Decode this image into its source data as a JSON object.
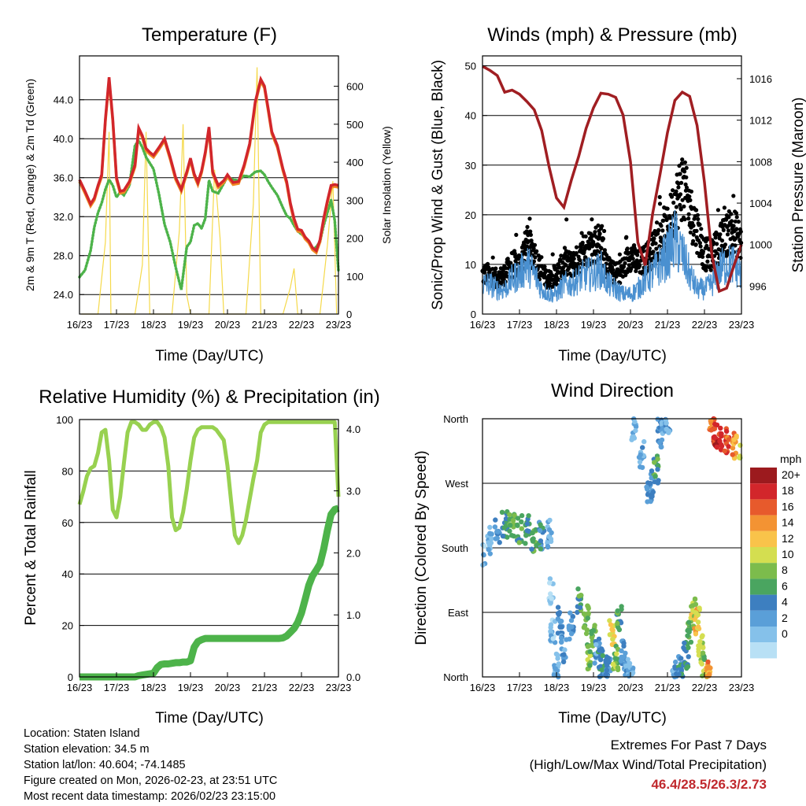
{
  "panels": {
    "temperature": {
      "title": "Temperature (F)",
      "ylabel_left": "2m & 9m T (Red, Orange) & 2m Td (Green)",
      "ylabel_right": "Solar Insolation (Yellow)",
      "xlabel": "Time (Day/UTC)",
      "left_ticks": [
        "24.0",
        "28.0",
        "32.0",
        "36.0",
        "40.0",
        "44.0"
      ],
      "right_ticks": [
        "0",
        "100",
        "200",
        "300",
        "400",
        "500",
        "600"
      ]
    },
    "winds": {
      "title": "Winds (mph) & Pressure (mb)",
      "ylabel_left": "Sonic/Prop Wind & Gust (Blue, Black)",
      "ylabel_right": "Station Pressure (Maroon)",
      "xlabel": "Time (Day/UTC)",
      "left_ticks": [
        "0",
        "10",
        "20",
        "30",
        "40",
        "50"
      ],
      "right_ticks": [
        "996",
        "1000",
        "1004",
        "1008",
        "1012",
        "1016"
      ]
    },
    "humidity": {
      "title": "Relative Humidity (%) & Precipitation (in)",
      "ylabel_left": "Percent & Total Rainfall",
      "xlabel": "Time (Day/UTC)",
      "left_ticks": [
        "0",
        "20",
        "40",
        "60",
        "80",
        "100"
      ],
      "right_ticks": [
        "0.0",
        "1.0",
        "2.0",
        "3.0",
        "4.0"
      ]
    },
    "direction": {
      "title": "Wind Direction",
      "ylabel_left": "Direction (Colored By Speed)",
      "xlabel": "Time (Day/UTC)",
      "dir_ticks": [
        "North",
        "East",
        "South",
        "West",
        "North"
      ],
      "legend_title": "mph",
      "legend_labels": [
        "20+",
        "18",
        "16",
        "14",
        "12",
        "10",
        "8",
        "6",
        "4",
        "2",
        "0"
      ]
    }
  },
  "x_ticks": [
    "16/23",
    "17/23",
    "18/23",
    "19/23",
    "20/23",
    "21/23",
    "22/23",
    "23/23"
  ],
  "footer": {
    "location": "Location: Staten Island",
    "elevation": "Station elevation: 34.5 m",
    "latlon": "Station lat/lon: 40.604; -74.1485",
    "created": "Figure created on Mon, 2026-02-23, at 23:51 UTC",
    "recent": "Most recent data timestamp: 2026/02/23 23:15:00",
    "extremes_title": "Extremes For Past 7 Days",
    "extremes_subtitle": "(High/Low/Max Wind/Total Precipitation)",
    "extremes_values": "46.4/28.5/26.3/2.73"
  },
  "colors": {
    "temp2m": "#d2262b",
    "temp9m": "#f08a24",
    "dewpoint": "#4db34a",
    "solar": "#f5d94a",
    "wind": "#4a90d0",
    "gust": "#000000",
    "pressure": "#a01e22",
    "rh": "#98d150",
    "precip": "#4db34a",
    "extremes": "#c0282d",
    "speed_scale": [
      "#b8e0f5",
      "#85c1ea",
      "#5a9fd8",
      "#3d7fc0",
      "#4aa560",
      "#7cbc4c",
      "#d4de50",
      "#f9c34a",
      "#f39333",
      "#e75a2c",
      "#d2262b",
      "#9c1a1e"
    ]
  },
  "chart_data": [
    {
      "type": "line",
      "title": "Temperature (F)",
      "xlabel": "Time (Day/UTC)",
      "ylabel": "2m & 9m T (Red, Orange) & 2m Td (Green)",
      "y2label": "Solar Insolation (Yellow)",
      "x": [
        0,
        0.15,
        0.3,
        0.4,
        0.5,
        0.6,
        0.7,
        0.8,
        0.9,
        1.0,
        1.1,
        1.2,
        1.35,
        1.5,
        1.6,
        1.7,
        1.8,
        1.9,
        2.0,
        2.15,
        2.3,
        2.45,
        2.6,
        2.75,
        2.9,
        3.0,
        3.1,
        3.2,
        3.3,
        3.4,
        3.5,
        3.6,
        3.75,
        3.9,
        4.0,
        4.15,
        4.3,
        4.45,
        4.6,
        4.75,
        4.9,
        5.0,
        5.1,
        5.2,
        5.35,
        5.5,
        5.6,
        5.7,
        5.8,
        5.9,
        6.0,
        6.1,
        6.2,
        6.3,
        6.4,
        6.5,
        6.6,
        6.7,
        6.8,
        6.9,
        7.0
      ],
      "ylim": [
        22,
        48.5
      ],
      "y2lim": [
        0,
        680
      ],
      "series": [
        {
          "name": "2m T",
          "values": [
            35.8,
            34.6,
            33.3,
            33.9,
            35.2,
            36.3,
            42.0,
            46.3,
            42.0,
            36.0,
            34.6,
            34.7,
            35.6,
            37.3,
            41.1,
            40.3,
            39.0,
            38.6,
            38.3,
            39.1,
            40.0,
            38.1,
            36.0,
            34.8,
            36.6,
            38.0,
            36.4,
            35.5,
            36.7,
            38.6,
            41.2,
            36.6,
            35.2,
            35.7,
            36.3,
            35.5,
            35.6,
            37.3,
            39.5,
            43.8,
            46.1,
            45.4,
            43.1,
            40.7,
            39.3,
            36.9,
            35.6,
            33.4,
            31.8,
            30.7,
            30.6,
            29.9,
            29.5,
            28.8,
            28.5,
            29.6,
            31.8,
            33.6,
            35.2,
            35.3,
            35.2
          ]
        },
        {
          "name": "9m T",
          "values": [
            35.6,
            34.4,
            33.1,
            33.7,
            35.0,
            36.1,
            41.8,
            46.0,
            41.8,
            35.8,
            34.4,
            34.5,
            35.4,
            37.1,
            40.9,
            40.1,
            38.8,
            38.4,
            38.1,
            38.9,
            39.8,
            37.9,
            35.8,
            34.6,
            36.4,
            37.8,
            36.2,
            35.3,
            36.5,
            38.4,
            41.0,
            36.4,
            35.0,
            35.5,
            36.1,
            35.3,
            35.4,
            37.1,
            39.3,
            43.6,
            45.9,
            45.2,
            42.9,
            40.5,
            39.1,
            36.7,
            35.4,
            33.2,
            31.6,
            30.5,
            30.4,
            29.7,
            29.3,
            28.6,
            28.3,
            29.4,
            31.6,
            33.4,
            35.0,
            35.1,
            35.0
          ]
        },
        {
          "name": "2m Td",
          "values": [
            25.8,
            26.5,
            28.5,
            30.9,
            32.4,
            33.4,
            34.8,
            35.8,
            35.2,
            34.0,
            34.5,
            34.2,
            35.2,
            39.3,
            39.8,
            39.1,
            38.1,
            37.5,
            36.9,
            34.3,
            31.2,
            29.4,
            26.8,
            24.5,
            28.9,
            29.4,
            31.1,
            31.3,
            30.8,
            31.8,
            35.7,
            34.6,
            34.4,
            35.4,
            36.1,
            35.8,
            35.7,
            36.2,
            36.1,
            36.6,
            36.7,
            36.3,
            35.6,
            35.0,
            34.2,
            32.9,
            32.1,
            31.8,
            31.1,
            30.5,
            30.2,
            29.9,
            29.4,
            28.6,
            28.9,
            29.4,
            31.1,
            32.4,
            33.7,
            31.6,
            26.4
          ]
        },
        {
          "name": "Solar Insolation",
          "axis": "y2",
          "x": [
            0.05,
            0.5,
            0.7,
            0.8,
            0.85,
            1.1,
            1.5,
            1.7,
            1.8,
            1.9,
            2.2,
            2.5,
            2.7,
            2.8,
            2.9,
            3.0,
            3.2,
            3.5,
            3.65,
            3.8,
            3.9,
            4.2,
            4.5,
            4.7,
            4.8,
            4.9,
            5.2,
            5.5,
            5.7,
            5.8,
            5.9,
            6.2,
            6.5,
            6.7,
            6.85,
            6.95
          ],
          "values": [
            0,
            0,
            190,
            480,
            0,
            0,
            0,
            130,
            480,
            0,
            0,
            0,
            220,
            500,
            50,
            0,
            0,
            0,
            380,
            200,
            0,
            0,
            0,
            290,
            650,
            0,
            0,
            0,
            70,
            120,
            0,
            0,
            0,
            180,
            350,
            0
          ]
        }
      ]
    },
    {
      "type": "line",
      "title": "Winds (mph) & Pressure (mb)",
      "xlabel": "Time (Day/UTC)",
      "ylabel": "Sonic/Prop Wind & Gust (Blue, Black)",
      "y2label": "Station Pressure (Maroon)",
      "x": [
        0,
        0.2,
        0.4,
        0.6,
        0.8,
        1.0,
        1.2,
        1.4,
        1.6,
        1.8,
        2.0,
        2.2,
        2.4,
        2.6,
        2.8,
        3.0,
        3.2,
        3.4,
        3.6,
        3.8,
        4.0,
        4.2,
        4.4,
        4.6,
        4.8,
        5.0,
        5.2,
        5.4,
        5.6,
        5.8,
        6.0,
        6.2,
        6.4,
        6.6,
        6.8,
        7.0
      ],
      "ylim": [
        0,
        52
      ],
      "y2lim": [
        993.3,
        1018.2
      ],
      "series": [
        {
          "name": "Sonic/Prop Wind",
          "values": [
            6,
            6,
            5,
            5,
            7,
            8,
            10,
            8,
            5,
            4,
            4,
            6,
            6,
            7,
            8,
            8,
            9,
            6,
            5,
            4,
            4,
            5,
            7,
            8,
            10,
            12,
            15,
            12,
            8,
            5,
            5,
            6,
            9,
            10,
            10,
            8
          ]
        },
        {
          "name": "Gust",
          "values": [
            8,
            8,
            7,
            8,
            10,
            10,
            14,
            12,
            8,
            7,
            8,
            10,
            10,
            11,
            13,
            14,
            15,
            9,
            8,
            9,
            12,
            10,
            11,
            13,
            15,
            17,
            22,
            26,
            21,
            17,
            12,
            12,
            14,
            16,
            17,
            14
          ]
        },
        {
          "name": "Station Pressure",
          "axis": "y2",
          "values": [
            1017.2,
            1016.8,
            1016.3,
            1014.7,
            1014.9,
            1014.5,
            1013.8,
            1013.0,
            1011.0,
            1007.5,
            1004.5,
            1003.6,
            1006.2,
            1008.5,
            1011.2,
            1013.2,
            1014.6,
            1014.5,
            1014.2,
            1012.5,
            1008.0,
            1000.2,
            998.0,
            1003.0,
            1006.8,
            1010.8,
            1013.9,
            1014.7,
            1014.3,
            1011.5,
            1006.0,
            999.0,
            995.5,
            995.8,
            998.0,
            1000.0
          ]
        }
      ]
    },
    {
      "type": "line",
      "title": "Relative Humidity (%) & Precipitation (in)",
      "xlabel": "Time (Day/UTC)",
      "ylabel": "Percent & Total Rainfall",
      "x": [
        0,
        0.1,
        0.2,
        0.3,
        0.4,
        0.5,
        0.6,
        0.7,
        0.8,
        0.9,
        1.0,
        1.1,
        1.2,
        1.3,
        1.4,
        1.5,
        1.6,
        1.7,
        1.8,
        1.9,
        2.0,
        2.1,
        2.2,
        2.3,
        2.4,
        2.5,
        2.6,
        2.7,
        2.8,
        2.9,
        3.0,
        3.1,
        3.2,
        3.3,
        3.4,
        3.5,
        3.6,
        3.7,
        3.8,
        3.9,
        4.0,
        4.1,
        4.2,
        4.3,
        4.4,
        4.5,
        4.6,
        4.7,
        4.8,
        4.9,
        5.0,
        5.1,
        5.2,
        5.3,
        5.4,
        5.5,
        5.6,
        5.7,
        5.8,
        5.9,
        6.0,
        6.1,
        6.2,
        6.3,
        6.4,
        6.5,
        6.6,
        6.7,
        6.8,
        6.9,
        7.0
      ],
      "ylim": [
        0,
        100
      ],
      "y2lim": [
        0,
        4.15
      ],
      "series": [
        {
          "name": "Relative Humidity",
          "values": [
            67,
            72,
            78,
            81,
            82,
            87,
            95,
            96,
            84,
            65,
            62,
            70,
            83,
            95,
            99,
            99,
            98,
            96,
            96,
            98,
            99,
            99,
            97,
            93,
            82,
            62,
            57,
            58,
            64,
            73,
            84,
            93,
            96,
            97,
            97,
            97,
            97,
            96,
            94,
            92,
            82,
            68,
            55,
            52,
            55,
            61,
            69,
            77,
            84,
            95,
            98,
            99,
            99,
            99,
            99,
            99,
            99,
            99,
            99,
            99,
            99,
            99,
            99,
            99,
            99,
            99,
            99,
            99,
            99,
            99,
            70
          ]
        },
        {
          "name": "Total Precipitation",
          "axis": "y2",
          "values": [
            0,
            0,
            0,
            0,
            0,
            0,
            0,
            0,
            0,
            0,
            0,
            0,
            0,
            0,
            0,
            0,
            0.02,
            0.03,
            0.04,
            0.05,
            0.06,
            0.15,
            0.2,
            0.21,
            0.21,
            0.22,
            0.23,
            0.23,
            0.24,
            0.24,
            0.26,
            0.48,
            0.57,
            0.6,
            0.62,
            0.62,
            0.62,
            0.62,
            0.62,
            0.62,
            0.62,
            0.62,
            0.62,
            0.62,
            0.62,
            0.62,
            0.62,
            0.62,
            0.62,
            0.62,
            0.62,
            0.62,
            0.62,
            0.62,
            0.62,
            0.63,
            0.66,
            0.72,
            0.78,
            0.88,
            1.03,
            1.25,
            1.48,
            1.63,
            1.72,
            1.82,
            2.06,
            2.36,
            2.62,
            2.7,
            2.72
          ]
        }
      ]
    },
    {
      "type": "scatter",
      "title": "Wind Direction",
      "xlabel": "Time (Day/UTC)",
      "ylabel": "Direction (Colored By Speed)",
      "ylim": [
        0,
        360
      ],
      "legend": "right",
      "legend_title": "mph",
      "series": [
        {
          "name": "Direction",
          "x": [
            0.0,
            0.2,
            0.4,
            0.6,
            0.8,
            1.0,
            1.2,
            1.4,
            1.6,
            1.8,
            1.85,
            1.9,
            2.0,
            2.1,
            2.2,
            2.4,
            2.6,
            2.8,
            2.9,
            3.0,
            3.1,
            3.2,
            3.3,
            3.4,
            3.5,
            3.6,
            3.7,
            3.8,
            3.9,
            4.0,
            4.1,
            4.3,
            4.5,
            4.6,
            4.7,
            4.8,
            4.9,
            5.0,
            5.2,
            5.35,
            5.5,
            5.6,
            5.7,
            5.8,
            5.9,
            6.0,
            6.1,
            6.2,
            6.3,
            6.4,
            6.6,
            6.8,
            7.0
          ],
          "values": [
            170,
            190,
            205,
            212,
            210,
            206,
            205,
            195,
            198,
            200,
            120,
            60,
            15,
            80,
            40,
            70,
            105,
            80,
            30,
            60,
            35,
            20,
            10,
            10,
            65,
            25,
            80,
            30,
            5,
            10,
            350,
            310,
            260,
            270,
            290,
            340,
            350,
            360,
            5,
            10,
            30,
            60,
            90,
            80,
            40,
            15,
            3,
            356,
            340,
            335,
            330,
            320,
            305
          ]
        },
        {
          "name": "Speed (mph)",
          "values": [
            2,
            3,
            5,
            7,
            9,
            8,
            7,
            8,
            6,
            4,
            1,
            2,
            3,
            5,
            4,
            5,
            8,
            9,
            10,
            9,
            4,
            7,
            6,
            5,
            13,
            10,
            8,
            5,
            4,
            3,
            3,
            4,
            5,
            6,
            8,
            5,
            3,
            4,
            4,
            6,
            7,
            9,
            12,
            14,
            12,
            10,
            16,
            18,
            20,
            20,
            18,
            16,
            12
          ]
        }
      ]
    }
  ]
}
